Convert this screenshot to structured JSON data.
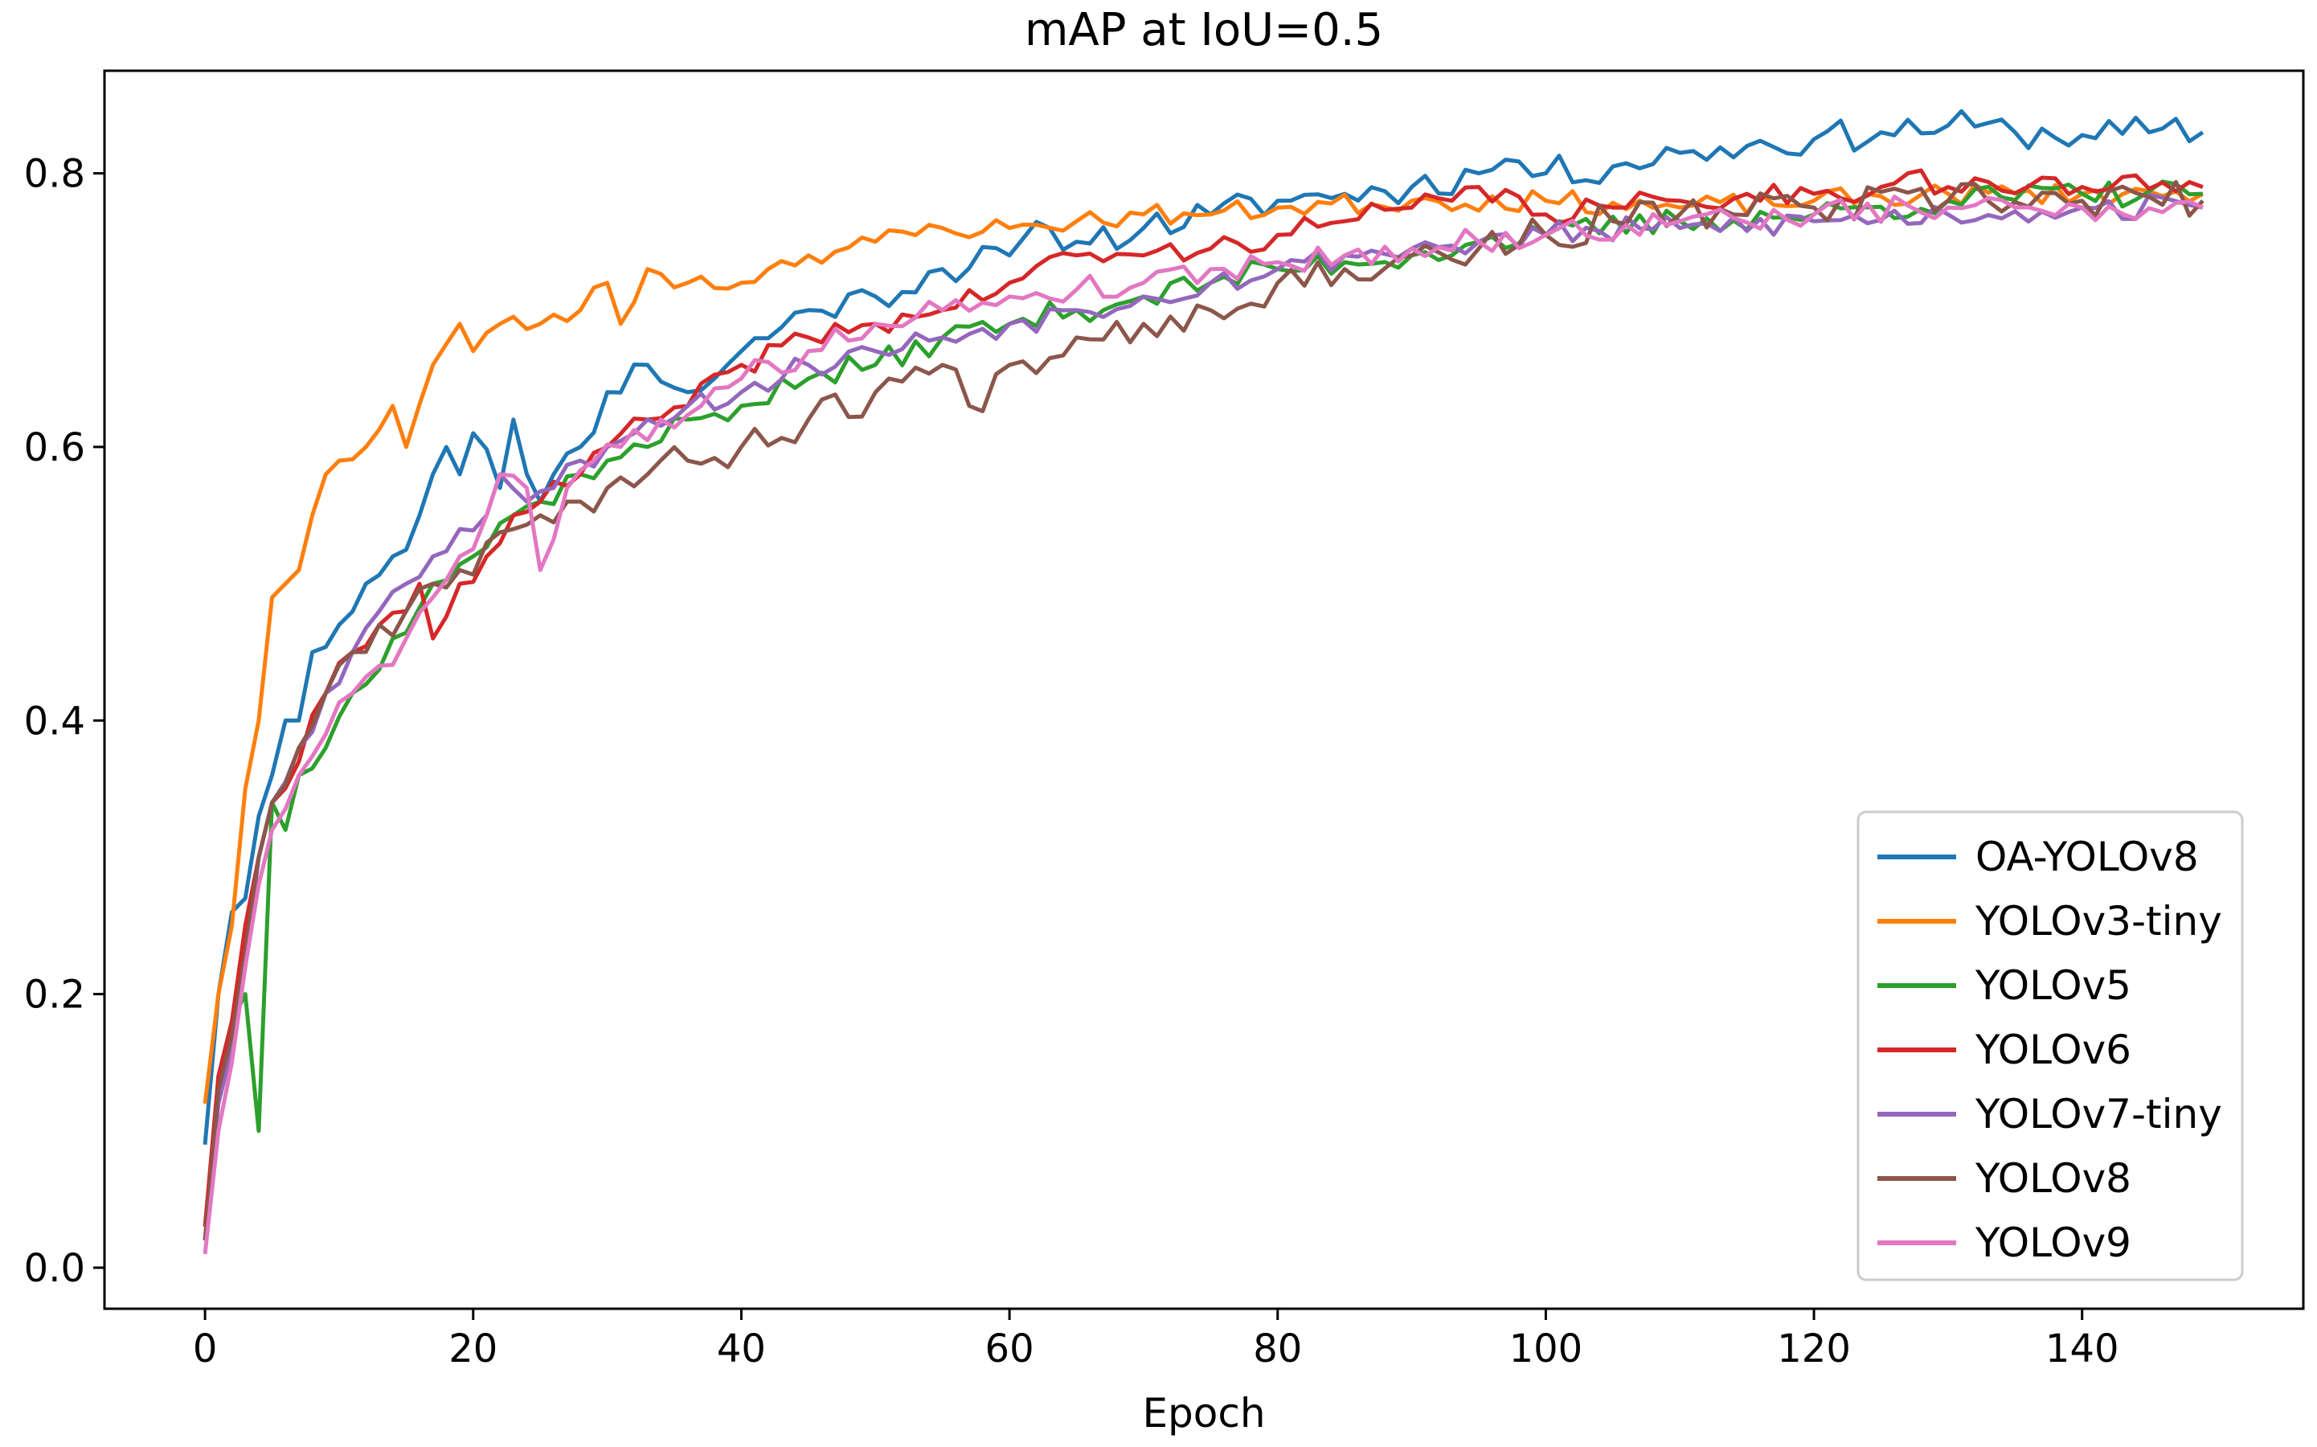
{
  "chart_data": {
    "type": "line",
    "title": "mAP at IoU=0.5",
    "xlabel": "Epoch",
    "ylabel": "",
    "xlim": [
      -7.5,
      156.5
    ],
    "ylim": [
      -0.03,
      0.875
    ],
    "xticks": [
      0,
      20,
      40,
      60,
      80,
      100,
      120,
      140
    ],
    "yticks": [
      0.0,
      0.2,
      0.4,
      0.6,
      0.8
    ],
    "ytick_labels": [
      "0.0",
      "0.2",
      "0.4",
      "0.6",
      "0.8"
    ],
    "grid": false,
    "legend_position": "lower-right",
    "series": [
      {
        "name": "OA-YOLOv8",
        "color": "#1f77b4",
        "anchors": [
          [
            0,
            0.09
          ],
          [
            1,
            0.2
          ],
          [
            2,
            0.26
          ],
          [
            3,
            0.27
          ],
          [
            4,
            0.33
          ],
          [
            5,
            0.36
          ],
          [
            6,
            0.4
          ],
          [
            7,
            0.4
          ],
          [
            8,
            0.45
          ],
          [
            10,
            0.47
          ],
          [
            12,
            0.5
          ],
          [
            14,
            0.52
          ],
          [
            16,
            0.55
          ],
          [
            18,
            0.6
          ],
          [
            19,
            0.58
          ],
          [
            20,
            0.61
          ],
          [
            22,
            0.57
          ],
          [
            23,
            0.62
          ],
          [
            25,
            0.56
          ],
          [
            26,
            0.58
          ],
          [
            28,
            0.6
          ],
          [
            30,
            0.64
          ],
          [
            33,
            0.66
          ],
          [
            36,
            0.64
          ],
          [
            38,
            0.65
          ],
          [
            40,
            0.67
          ],
          [
            45,
            0.7
          ],
          [
            50,
            0.71
          ],
          [
            55,
            0.73
          ],
          [
            60,
            0.74
          ],
          [
            63,
            0.76
          ],
          [
            65,
            0.75
          ],
          [
            70,
            0.76
          ],
          [
            75,
            0.77
          ],
          [
            80,
            0.78
          ],
          [
            85,
            0.785
          ],
          [
            90,
            0.79
          ],
          [
            95,
            0.8
          ],
          [
            97,
            0.81
          ],
          [
            100,
            0.8
          ],
          [
            105,
            0.805
          ],
          [
            110,
            0.815
          ],
          [
            115,
            0.82
          ],
          [
            120,
            0.825
          ],
          [
            125,
            0.83
          ],
          [
            130,
            0.835
          ],
          [
            135,
            0.83
          ],
          [
            140,
            0.828
          ],
          [
            145,
            0.83
          ],
          [
            149,
            0.83
          ]
        ],
        "noise": 0.012,
        "seed": 11
      },
      {
        "name": "YOLOv3-tiny",
        "color": "#ff7f0e",
        "anchors": [
          [
            0,
            0.12
          ],
          [
            1,
            0.2
          ],
          [
            2,
            0.25
          ],
          [
            3,
            0.35
          ],
          [
            4,
            0.4
          ],
          [
            5,
            0.49
          ],
          [
            6,
            0.5
          ],
          [
            7,
            0.51
          ],
          [
            8,
            0.55
          ],
          [
            9,
            0.58
          ],
          [
            10,
            0.59
          ],
          [
            12,
            0.6
          ],
          [
            14,
            0.63
          ],
          [
            15,
            0.6
          ],
          [
            17,
            0.66
          ],
          [
            19,
            0.69
          ],
          [
            20,
            0.67
          ],
          [
            22,
            0.69
          ],
          [
            25,
            0.69
          ],
          [
            28,
            0.7
          ],
          [
            30,
            0.72
          ],
          [
            31,
            0.69
          ],
          [
            33,
            0.73
          ],
          [
            36,
            0.72
          ],
          [
            40,
            0.72
          ],
          [
            42,
            0.73
          ],
          [
            45,
            0.74
          ],
          [
            50,
            0.75
          ],
          [
            55,
            0.76
          ],
          [
            60,
            0.76
          ],
          [
            65,
            0.765
          ],
          [
            70,
            0.77
          ],
          [
            75,
            0.77
          ],
          [
            80,
            0.775
          ],
          [
            90,
            0.78
          ],
          [
            100,
            0.78
          ],
          [
            110,
            0.775
          ],
          [
            120,
            0.78
          ],
          [
            130,
            0.785
          ],
          [
            140,
            0.785
          ],
          [
            149,
            0.785
          ]
        ],
        "noise": 0.008,
        "seed": 23
      },
      {
        "name": "YOLOv5",
        "color": "#2ca02c",
        "anchors": [
          [
            0,
            0.02
          ],
          [
            1,
            0.14
          ],
          [
            2,
            0.18
          ],
          [
            3,
            0.2
          ],
          [
            4,
            0.1
          ],
          [
            5,
            0.34
          ],
          [
            6,
            0.32
          ],
          [
            7,
            0.36
          ],
          [
            9,
            0.38
          ],
          [
            11,
            0.42
          ],
          [
            14,
            0.46
          ],
          [
            17,
            0.5
          ],
          [
            20,
            0.52
          ],
          [
            23,
            0.55
          ],
          [
            25,
            0.56
          ],
          [
            28,
            0.58
          ],
          [
            30,
            0.59
          ],
          [
            33,
            0.6
          ],
          [
            36,
            0.62
          ],
          [
            40,
            0.63
          ],
          [
            45,
            0.65
          ],
          [
            50,
            0.66
          ],
          [
            55,
            0.68
          ],
          [
            60,
            0.69
          ],
          [
            65,
            0.7
          ],
          [
            70,
            0.71
          ],
          [
            75,
            0.72
          ],
          [
            80,
            0.73
          ],
          [
            85,
            0.735
          ],
          [
            90,
            0.74
          ],
          [
            95,
            0.75
          ],
          [
            100,
            0.755
          ],
          [
            110,
            0.765
          ],
          [
            120,
            0.77
          ],
          [
            130,
            0.78
          ],
          [
            140,
            0.785
          ],
          [
            149,
            0.785
          ]
        ],
        "noise": 0.01,
        "seed": 37
      },
      {
        "name": "YOLOv6",
        "color": "#d62728",
        "anchors": [
          [
            0,
            0.03
          ],
          [
            1,
            0.14
          ],
          [
            2,
            0.18
          ],
          [
            3,
            0.25
          ],
          [
            4,
            0.3
          ],
          [
            5,
            0.34
          ],
          [
            7,
            0.37
          ],
          [
            9,
            0.42
          ],
          [
            11,
            0.45
          ],
          [
            13,
            0.47
          ],
          [
            15,
            0.48
          ],
          [
            16,
            0.5
          ],
          [
            17,
            0.46
          ],
          [
            19,
            0.5
          ],
          [
            21,
            0.52
          ],
          [
            23,
            0.55
          ],
          [
            25,
            0.56
          ],
          [
            28,
            0.58
          ],
          [
            30,
            0.6
          ],
          [
            33,
            0.62
          ],
          [
            36,
            0.63
          ],
          [
            40,
            0.66
          ],
          [
            45,
            0.68
          ],
          [
            50,
            0.69
          ],
          [
            55,
            0.7
          ],
          [
            60,
            0.72
          ],
          [
            65,
            0.74
          ],
          [
            70,
            0.74
          ],
          [
            75,
            0.745
          ],
          [
            80,
            0.755
          ],
          [
            85,
            0.765
          ],
          [
            90,
            0.775
          ],
          [
            93,
            0.78
          ],
          [
            95,
            0.79
          ],
          [
            100,
            0.77
          ],
          [
            105,
            0.775
          ],
          [
            110,
            0.78
          ],
          [
            115,
            0.785
          ],
          [
            120,
            0.785
          ],
          [
            125,
            0.79
          ],
          [
            127,
            0.8
          ],
          [
            130,
            0.79
          ],
          [
            140,
            0.79
          ],
          [
            149,
            0.79
          ]
        ],
        "noise": 0.009,
        "seed": 41
      },
      {
        "name": "YOLOv7-tiny",
        "color": "#9467bd",
        "anchors": [
          [
            0,
            0.02
          ],
          [
            1,
            0.12
          ],
          [
            2,
            0.16
          ],
          [
            3,
            0.22
          ],
          [
            4,
            0.3
          ],
          [
            5,
            0.34
          ],
          [
            7,
            0.38
          ],
          [
            9,
            0.42
          ],
          [
            11,
            0.45
          ],
          [
            13,
            0.48
          ],
          [
            15,
            0.5
          ],
          [
            17,
            0.52
          ],
          [
            19,
            0.54
          ],
          [
            21,
            0.55
          ],
          [
            22,
            0.58
          ],
          [
            24,
            0.56
          ],
          [
            26,
            0.57
          ],
          [
            28,
            0.59
          ],
          [
            30,
            0.6
          ],
          [
            33,
            0.62
          ],
          [
            36,
            0.63
          ],
          [
            40,
            0.64
          ],
          [
            45,
            0.66
          ],
          [
            50,
            0.67
          ],
          [
            55,
            0.68
          ],
          [
            60,
            0.69
          ],
          [
            65,
            0.7
          ],
          [
            70,
            0.71
          ],
          [
            75,
            0.72
          ],
          [
            80,
            0.73
          ],
          [
            85,
            0.74
          ],
          [
            90,
            0.745
          ],
          [
            95,
            0.75
          ],
          [
            100,
            0.755
          ],
          [
            110,
            0.76
          ],
          [
            120,
            0.765
          ],
          [
            130,
            0.77
          ],
          [
            140,
            0.775
          ],
          [
            149,
            0.775
          ]
        ],
        "noise": 0.01,
        "seed": 53
      },
      {
        "name": "YOLOv8",
        "color": "#8c564b",
        "anchors": [
          [
            0,
            0.02
          ],
          [
            1,
            0.13
          ],
          [
            2,
            0.17
          ],
          [
            3,
            0.23
          ],
          [
            4,
            0.3
          ],
          [
            5,
            0.34
          ],
          [
            7,
            0.38
          ],
          [
            9,
            0.42
          ],
          [
            11,
            0.45
          ],
          [
            13,
            0.47
          ],
          [
            15,
            0.48
          ],
          [
            17,
            0.5
          ],
          [
            19,
            0.51
          ],
          [
            21,
            0.53
          ],
          [
            23,
            0.54
          ],
          [
            25,
            0.55
          ],
          [
            28,
            0.56
          ],
          [
            30,
            0.57
          ],
          [
            33,
            0.58
          ],
          [
            36,
            0.59
          ],
          [
            40,
            0.6
          ],
          [
            45,
            0.62
          ],
          [
            50,
            0.64
          ],
          [
            55,
            0.66
          ],
          [
            57,
            0.63
          ],
          [
            60,
            0.66
          ],
          [
            65,
            0.68
          ],
          [
            70,
            0.69
          ],
          [
            75,
            0.7
          ],
          [
            80,
            0.72
          ],
          [
            85,
            0.73
          ],
          [
            90,
            0.74
          ],
          [
            95,
            0.745
          ],
          [
            100,
            0.755
          ],
          [
            105,
            0.765
          ],
          [
            110,
            0.77
          ],
          [
            120,
            0.775
          ],
          [
            130,
            0.78
          ],
          [
            140,
            0.78
          ],
          [
            149,
            0.78
          ]
        ],
        "noise": 0.014,
        "seed": 67
      },
      {
        "name": "YOLOv9",
        "color": "#e377c2",
        "anchors": [
          [
            0,
            0.01
          ],
          [
            1,
            0.1
          ],
          [
            2,
            0.15
          ],
          [
            3,
            0.22
          ],
          [
            4,
            0.28
          ],
          [
            5,
            0.32
          ],
          [
            7,
            0.36
          ],
          [
            9,
            0.39
          ],
          [
            11,
            0.42
          ],
          [
            13,
            0.44
          ],
          [
            15,
            0.46
          ],
          [
            17,
            0.49
          ],
          [
            19,
            0.52
          ],
          [
            21,
            0.55
          ],
          [
            22,
            0.58
          ],
          [
            24,
            0.57
          ],
          [
            25,
            0.51
          ],
          [
            27,
            0.57
          ],
          [
            29,
            0.59
          ],
          [
            31,
            0.6
          ],
          [
            34,
            0.62
          ],
          [
            37,
            0.63
          ],
          [
            40,
            0.65
          ],
          [
            45,
            0.67
          ],
          [
            50,
            0.69
          ],
          [
            55,
            0.7
          ],
          [
            60,
            0.71
          ],
          [
            65,
            0.715
          ],
          [
            70,
            0.72
          ],
          [
            75,
            0.73
          ],
          [
            80,
            0.735
          ],
          [
            85,
            0.74
          ],
          [
            90,
            0.745
          ],
          [
            95,
            0.75
          ],
          [
            100,
            0.755
          ],
          [
            110,
            0.765
          ],
          [
            120,
            0.77
          ],
          [
            130,
            0.775
          ],
          [
            140,
            0.775
          ],
          [
            149,
            0.775
          ]
        ],
        "noise": 0.01,
        "seed": 79
      }
    ]
  }
}
